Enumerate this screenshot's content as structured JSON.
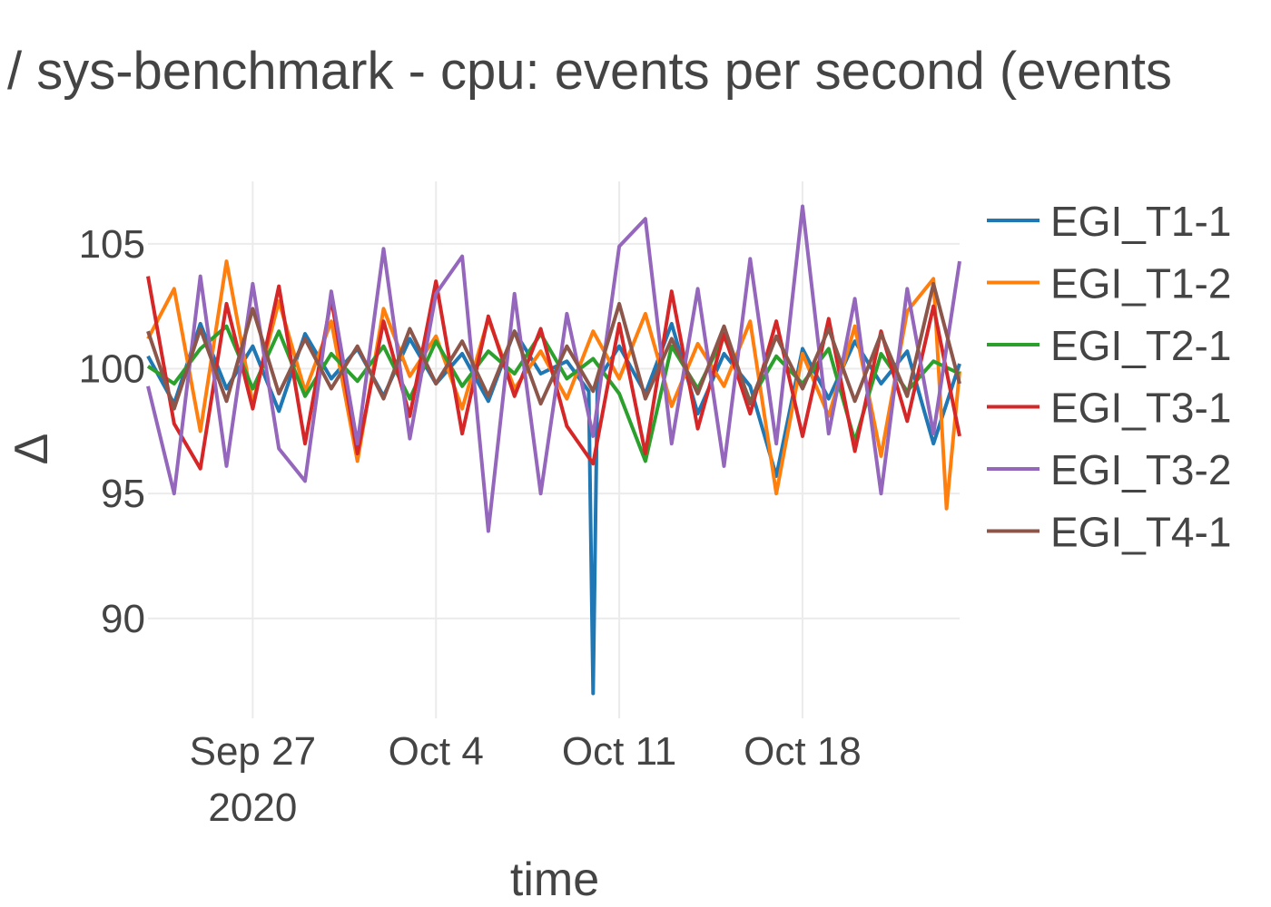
{
  "chart_data": {
    "type": "line",
    "title": "/ sys-benchmark - cpu: events per second (events",
    "xlabel": "time",
    "ylabel": "Δ",
    "x_range": [
      "2020-09-23",
      "2020-10-24"
    ],
    "ylim": [
      86,
      107.5
    ],
    "y_ticks": [
      90,
      95,
      100,
      105
    ],
    "x_ticks": [
      {
        "date": "2020-09-27",
        "label": "Sep 27",
        "sublabel": "2020"
      },
      {
        "date": "2020-10-04",
        "label": "Oct 4",
        "sublabel": ""
      },
      {
        "date": "2020-10-11",
        "label": "Oct 11",
        "sublabel": ""
      },
      {
        "date": "2020-10-18",
        "label": "Oct 18",
        "sublabel": ""
      }
    ],
    "grid": true,
    "legend_position": "right",
    "series": [
      {
        "name": "EGI_T1-1",
        "color": "#1f77b4",
        "points": [
          [
            "2020-09-23",
            100.5
          ],
          [
            "2020-09-24",
            98.6
          ],
          [
            "2020-09-25",
            101.8
          ],
          [
            "2020-09-26",
            99.2
          ],
          [
            "2020-09-27",
            100.9
          ],
          [
            "2020-09-28",
            98.3
          ],
          [
            "2020-09-29",
            101.4
          ],
          [
            "2020-09-30",
            99.6
          ],
          [
            "2020-10-01",
            100.8
          ],
          [
            "2020-10-02",
            98.9
          ],
          [
            "2020-10-03",
            101.2
          ],
          [
            "2020-10-04",
            99.4
          ],
          [
            "2020-10-05",
            100.6
          ],
          [
            "2020-10-06",
            98.7
          ],
          [
            "2020-10-07",
            101.5
          ],
          [
            "2020-10-08",
            99.8
          ],
          [
            "2020-10-09",
            100.3
          ],
          [
            "2020-10-09T20:00",
            99.1
          ],
          [
            "2020-10-10T00:00",
            87.0
          ],
          [
            "2020-10-10T04:00",
            99.5
          ],
          [
            "2020-10-11",
            100.9
          ],
          [
            "2020-10-12",
            99.0
          ],
          [
            "2020-10-13",
            101.8
          ],
          [
            "2020-10-14",
            98.2
          ],
          [
            "2020-10-15",
            100.6
          ],
          [
            "2020-10-16",
            99.3
          ],
          [
            "2020-10-17",
            95.7
          ],
          [
            "2020-10-18",
            100.8
          ],
          [
            "2020-10-19",
            98.8
          ],
          [
            "2020-10-20",
            101.1
          ],
          [
            "2020-10-21",
            99.4
          ],
          [
            "2020-10-22",
            100.7
          ],
          [
            "2020-10-23",
            97.0
          ],
          [
            "2020-10-24",
            100.2
          ]
        ]
      },
      {
        "name": "EGI_T1-2",
        "color": "#ff7f0e",
        "points": [
          [
            "2020-09-23",
            101.2
          ],
          [
            "2020-09-24",
            103.2
          ],
          [
            "2020-09-25",
            97.5
          ],
          [
            "2020-09-26",
            104.3
          ],
          [
            "2020-09-27",
            98.6
          ],
          [
            "2020-09-28",
            102.7
          ],
          [
            "2020-09-29",
            99.1
          ],
          [
            "2020-09-30",
            101.9
          ],
          [
            "2020-10-01",
            96.3
          ],
          [
            "2020-10-02",
            102.4
          ],
          [
            "2020-10-03",
            99.7
          ],
          [
            "2020-10-04",
            101.3
          ],
          [
            "2020-10-05",
            98.4
          ],
          [
            "2020-10-06",
            102.0
          ],
          [
            "2020-10-07",
            99.2
          ],
          [
            "2020-10-08",
            100.7
          ],
          [
            "2020-10-09",
            98.8
          ],
          [
            "2020-10-10",
            101.5
          ],
          [
            "2020-10-11",
            99.6
          ],
          [
            "2020-10-12",
            102.2
          ],
          [
            "2020-10-13",
            98.5
          ],
          [
            "2020-10-14",
            101.0
          ],
          [
            "2020-10-15",
            99.3
          ],
          [
            "2020-10-16",
            101.9
          ],
          [
            "2020-10-17",
            95.0
          ],
          [
            "2020-10-18",
            100.6
          ],
          [
            "2020-10-19",
            98.1
          ],
          [
            "2020-10-20",
            101.7
          ],
          [
            "2020-10-21",
            96.5
          ],
          [
            "2020-10-22",
            102.3
          ],
          [
            "2020-10-23",
            103.6
          ],
          [
            "2020-10-23T12:00",
            94.4
          ],
          [
            "2020-10-24",
            99.9
          ]
        ]
      },
      {
        "name": "EGI_T2-1",
        "color": "#2ca02c",
        "points": [
          [
            "2020-09-23",
            100.1
          ],
          [
            "2020-09-24",
            99.4
          ],
          [
            "2020-09-25",
            100.8
          ],
          [
            "2020-09-26",
            101.7
          ],
          [
            "2020-09-27",
            99.2
          ],
          [
            "2020-09-28",
            101.5
          ],
          [
            "2020-09-29",
            98.9
          ],
          [
            "2020-09-30",
            100.6
          ],
          [
            "2020-10-01",
            99.5
          ],
          [
            "2020-10-02",
            100.9
          ],
          [
            "2020-10-03",
            98.8
          ],
          [
            "2020-10-04",
            101.1
          ],
          [
            "2020-10-05",
            99.3
          ],
          [
            "2020-10-06",
            100.7
          ],
          [
            "2020-10-07",
            99.8
          ],
          [
            "2020-10-08",
            101.4
          ],
          [
            "2020-10-09",
            99.6
          ],
          [
            "2020-10-10",
            100.4
          ],
          [
            "2020-10-11",
            99.0
          ],
          [
            "2020-10-12",
            96.3
          ],
          [
            "2020-10-13",
            100.9
          ],
          [
            "2020-10-14",
            99.2
          ],
          [
            "2020-10-15",
            101.3
          ],
          [
            "2020-10-16",
            98.7
          ],
          [
            "2020-10-17",
            100.5
          ],
          [
            "2020-10-18",
            99.4
          ],
          [
            "2020-10-19",
            100.8
          ],
          [
            "2020-10-20",
            97.1
          ],
          [
            "2020-10-21",
            100.6
          ],
          [
            "2020-10-22",
            99.1
          ],
          [
            "2020-10-23",
            100.3
          ],
          [
            "2020-10-24",
            99.8
          ]
        ]
      },
      {
        "name": "EGI_T3-1",
        "color": "#d62728",
        "points": [
          [
            "2020-09-23",
            103.7
          ],
          [
            "2020-09-24",
            97.8
          ],
          [
            "2020-09-25",
            96.0
          ],
          [
            "2020-09-26",
            102.6
          ],
          [
            "2020-09-27",
            98.4
          ],
          [
            "2020-09-28",
            103.3
          ],
          [
            "2020-09-29",
            97.0
          ],
          [
            "2020-09-30",
            102.8
          ],
          [
            "2020-10-01",
            96.6
          ],
          [
            "2020-10-02",
            101.9
          ],
          [
            "2020-10-03",
            98.1
          ],
          [
            "2020-10-04",
            103.5
          ],
          [
            "2020-10-05",
            97.4
          ],
          [
            "2020-10-06",
            102.1
          ],
          [
            "2020-10-07",
            98.9
          ],
          [
            "2020-10-08",
            101.6
          ],
          [
            "2020-10-09",
            97.7
          ],
          [
            "2020-10-10",
            96.2
          ],
          [
            "2020-10-11",
            101.8
          ],
          [
            "2020-10-12",
            96.6
          ],
          [
            "2020-10-13",
            103.1
          ],
          [
            "2020-10-14",
            97.6
          ],
          [
            "2020-10-15",
            101.4
          ],
          [
            "2020-10-16",
            98.2
          ],
          [
            "2020-10-17",
            101.9
          ],
          [
            "2020-10-18",
            97.3
          ],
          [
            "2020-10-19",
            102.0
          ],
          [
            "2020-10-20",
            96.7
          ],
          [
            "2020-10-21",
            101.5
          ],
          [
            "2020-10-22",
            97.9
          ],
          [
            "2020-10-23",
            102.5
          ],
          [
            "2020-10-24",
            97.3
          ]
        ]
      },
      {
        "name": "EGI_T3-2",
        "color": "#9467bd",
        "points": [
          [
            "2020-09-23",
            99.3
          ],
          [
            "2020-09-24",
            95.0
          ],
          [
            "2020-09-25",
            103.7
          ],
          [
            "2020-09-26",
            96.1
          ],
          [
            "2020-09-27",
            103.4
          ],
          [
            "2020-09-28",
            96.8
          ],
          [
            "2020-09-29",
            95.5
          ],
          [
            "2020-09-30",
            103.1
          ],
          [
            "2020-10-01",
            97.0
          ],
          [
            "2020-10-02",
            104.8
          ],
          [
            "2020-10-03",
            97.2
          ],
          [
            "2020-10-04",
            103.0
          ],
          [
            "2020-10-05",
            104.5
          ],
          [
            "2020-10-06",
            93.5
          ],
          [
            "2020-10-07",
            103.0
          ],
          [
            "2020-10-08",
            95.0
          ],
          [
            "2020-10-09",
            102.2
          ],
          [
            "2020-10-10",
            97.3
          ],
          [
            "2020-10-11",
            104.9
          ],
          [
            "2020-10-12",
            106.0
          ],
          [
            "2020-10-13",
            97.0
          ],
          [
            "2020-10-14",
            103.2
          ],
          [
            "2020-10-15",
            96.1
          ],
          [
            "2020-10-16",
            104.4
          ],
          [
            "2020-10-17",
            97.0
          ],
          [
            "2020-10-18",
            106.5
          ],
          [
            "2020-10-19",
            97.4
          ],
          [
            "2020-10-20",
            102.8
          ],
          [
            "2020-10-21",
            95.0
          ],
          [
            "2020-10-22",
            103.2
          ],
          [
            "2020-10-23",
            97.4
          ],
          [
            "2020-10-24",
            104.3
          ]
        ]
      },
      {
        "name": "EGI_T4-1",
        "color": "#8c564b",
        "points": [
          [
            "2020-09-23",
            101.5
          ],
          [
            "2020-09-24",
            98.4
          ],
          [
            "2020-09-25",
            101.6
          ],
          [
            "2020-09-26",
            98.7
          ],
          [
            "2020-09-27",
            102.4
          ],
          [
            "2020-09-28",
            99.0
          ],
          [
            "2020-09-29",
            101.2
          ],
          [
            "2020-09-30",
            99.2
          ],
          [
            "2020-10-01",
            100.9
          ],
          [
            "2020-10-02",
            98.8
          ],
          [
            "2020-10-03",
            101.6
          ],
          [
            "2020-10-04",
            99.4
          ],
          [
            "2020-10-05",
            101.1
          ],
          [
            "2020-10-06",
            98.9
          ],
          [
            "2020-10-07",
            101.5
          ],
          [
            "2020-10-08",
            98.6
          ],
          [
            "2020-10-09",
            100.9
          ],
          [
            "2020-10-10",
            99.1
          ],
          [
            "2020-10-11",
            102.6
          ],
          [
            "2020-10-12",
            98.8
          ],
          [
            "2020-10-13",
            101.2
          ],
          [
            "2020-10-14",
            99.0
          ],
          [
            "2020-10-15",
            101.7
          ],
          [
            "2020-10-16",
            98.6
          ],
          [
            "2020-10-17",
            101.3
          ],
          [
            "2020-10-18",
            99.2
          ],
          [
            "2020-10-19",
            101.6
          ],
          [
            "2020-10-20",
            98.7
          ],
          [
            "2020-10-21",
            101.4
          ],
          [
            "2020-10-22",
            98.9
          ],
          [
            "2020-10-23",
            103.4
          ],
          [
            "2020-10-24",
            99.4
          ]
        ]
      }
    ]
  }
}
